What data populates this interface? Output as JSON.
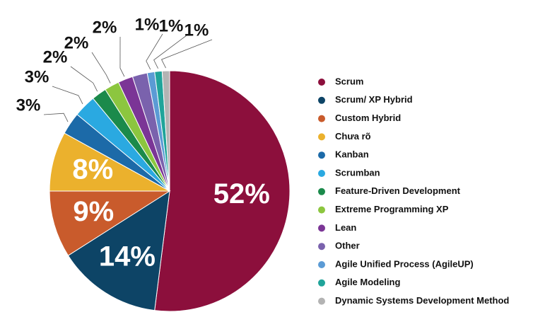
{
  "chart_data": {
    "type": "pie",
    "categories": [
      "Scrum",
      "Scrum/ XP Hybrid",
      "Custom Hybrid",
      "Chưa rõ",
      "Kanban",
      "Scrumban",
      "Feature-Driven Development",
      "Extreme Programming XP",
      "Lean",
      "Other",
      "Agile Unified Process (AgileUP)",
      "Agile Modeling",
      "Dynamic Systems Development Method"
    ],
    "values": [
      52,
      14,
      9,
      8,
      3,
      3,
      2,
      2,
      2,
      2,
      1,
      1,
      1
    ],
    "value_labels": [
      "52%",
      "14%",
      "9%",
      "8%",
      "3%",
      "3%",
      "2%",
      "2%",
      "2%",
      null,
      "1%",
      "1%",
      "1%"
    ],
    "colors": [
      "#8c0f3c",
      "#0d4466",
      "#c95b2c",
      "#ebb12d",
      "#1c6aa8",
      "#2aa9e1",
      "#1b8a4b",
      "#8cc63f",
      "#7b3596",
      "#7a62ad",
      "#5b9bd5",
      "#20a49a",
      "#b3b3b3"
    ]
  }
}
